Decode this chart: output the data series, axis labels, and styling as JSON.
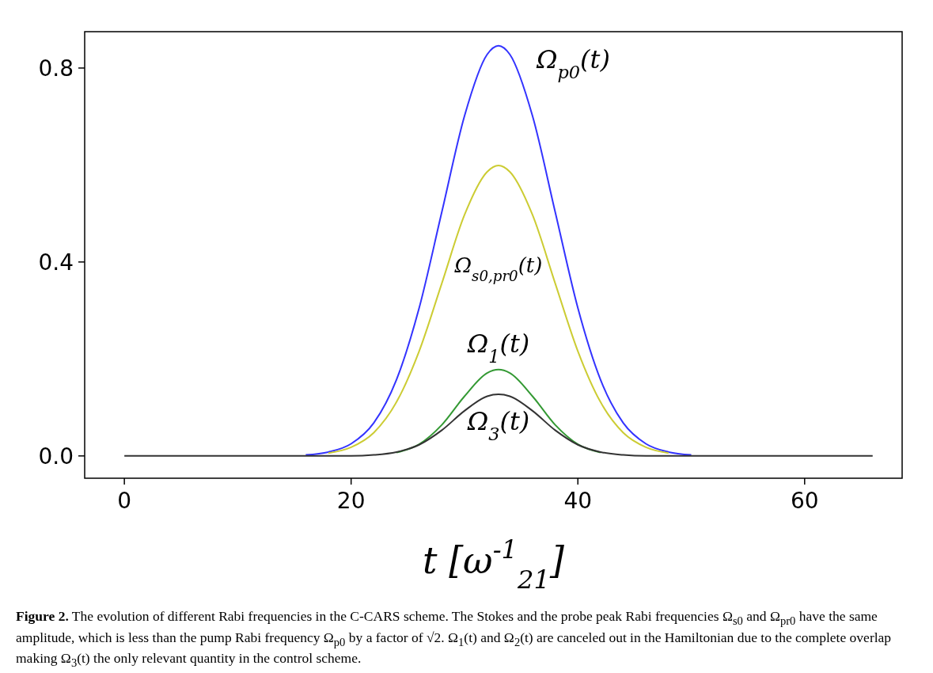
{
  "chart_data": {
    "type": "line",
    "xlabel": "t [ω$^{-1}$$_{21}$]",
    "x": [
      0,
      12,
      14,
      16,
      18,
      20,
      22,
      24,
      26,
      28,
      30,
      32,
      33,
      34,
      36,
      38,
      40,
      42,
      44,
      46,
      48,
      50,
      52,
      54,
      66
    ],
    "series": [
      {
        "name": "Ω$_{p0}$(t)",
        "color": "#3333ff",
        "values": [
          null,
          null,
          null,
          0.002,
          0.008,
          0.025,
          0.068,
          0.157,
          0.305,
          0.503,
          0.701,
          0.828,
          0.846,
          0.828,
          0.701,
          0.503,
          0.305,
          0.157,
          0.068,
          0.025,
          0.008,
          0.002,
          null,
          null,
          null
        ]
      },
      {
        "name": "Ω$_{s0,pr0}$(t)",
        "color": "#cccc33",
        "values": [
          null,
          null,
          null,
          null,
          0.006,
          0.018,
          0.048,
          0.111,
          0.216,
          0.356,
          0.497,
          0.586,
          0.599,
          0.586,
          0.497,
          0.356,
          0.216,
          0.111,
          0.048,
          0.018,
          0.006,
          null,
          null,
          null,
          null
        ]
      },
      {
        "name": "Ω$_{1}$(t)",
        "color": "#339933",
        "values": [
          null,
          null,
          null,
          null,
          null,
          null,
          null,
          0.007,
          0.024,
          0.064,
          0.123,
          0.171,
          0.178,
          0.171,
          0.123,
          0.064,
          0.024,
          0.007,
          null,
          null,
          null,
          null,
          null,
          null,
          null
        ]
      },
      {
        "name": "Ω$_{3}$(t)",
        "color": "#333333",
        "values": [
          0,
          0,
          0,
          0,
          0,
          0,
          0.002,
          0.008,
          0.023,
          0.053,
          0.093,
          0.123,
          0.127,
          0.123,
          0.093,
          0.053,
          0.023,
          0.008,
          0.002,
          0,
          0,
          0,
          0,
          0,
          0
        ]
      }
    ],
    "xlim": [
      -3.5,
      68.6
    ],
    "ylim": [
      -0.046,
      0.875
    ],
    "xticks": [
      0,
      20,
      40,
      60
    ],
    "yticks": [
      {
        "value": 0,
        "label": "0.0"
      },
      {
        "value": 0.4,
        "label": "0.4"
      },
      {
        "value": 0.8,
        "label": "0.8"
      }
    ],
    "annotations": [
      "Figure 2. The evolution of different Rabi frequencies in the C-CARS scheme. The Stokes and the probe peak Rabi frequencies Ω$_{s0}$ and Ω$_{pr0}$ have the same amplitude, which is less than the pump Rabi frequency Ω$_{p0}$ by a factor of √2. Ω$_{1}$(t) and Ω$_{2}$(t) are canceled out in the Hamiltonian due to the complete overlap making Ω$_{3}$(t) the only relevant quantity in the control scheme."
    ],
    "grid": false,
    "marker": "none",
    "line_style": "solid"
  }
}
